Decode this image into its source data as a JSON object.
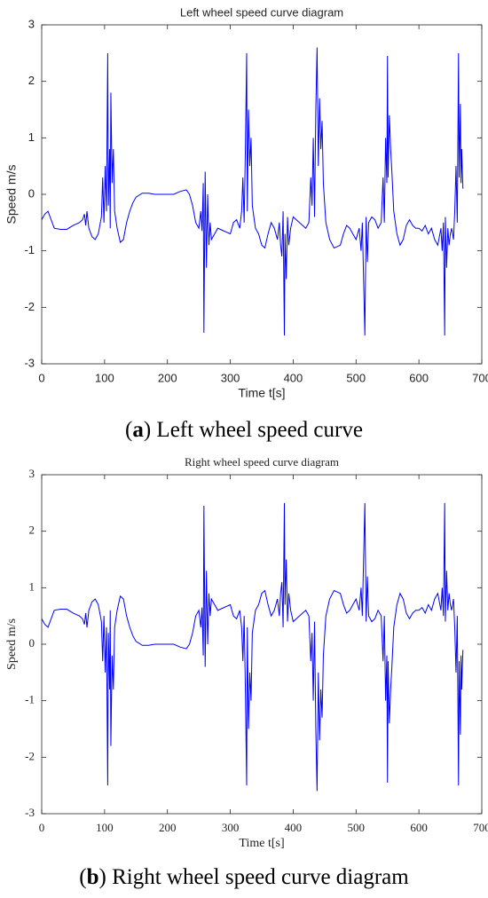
{
  "chart_data": [
    {
      "type": "line",
      "title": "Left wheel speed curve diagram",
      "xlabel": "Time t[s]",
      "ylabel": "Speed m/s",
      "caption": [
        {
          "text": "(",
          "bold": false
        },
        {
          "text": "a",
          "bold": true
        },
        {
          "text": ") Left wheel speed curve",
          "bold": false
        }
      ],
      "xlim": [
        0,
        700
      ],
      "xticks": [
        0,
        100,
        200,
        300,
        400,
        500,
        600,
        700
      ],
      "ylim": [
        -3,
        3
      ],
      "yticks": [
        -3,
        -2,
        -1,
        0,
        1,
        2,
        3
      ],
      "x": [
        0,
        5,
        10,
        15,
        20,
        30,
        40,
        50,
        60,
        65,
        68,
        70,
        72,
        75,
        80,
        85,
        90,
        95,
        97,
        99,
        101,
        103,
        105,
        106,
        108,
        109,
        110,
        112,
        114,
        116,
        120,
        125,
        130,
        135,
        140,
        145,
        150,
        160,
        170,
        180,
        190,
        200,
        210,
        220,
        230,
        235,
        240,
        245,
        250,
        253,
        255,
        257,
        258,
        260,
        262,
        264,
        266,
        268,
        270,
        275,
        280,
        290,
        300,
        305,
        310,
        315,
        318,
        320,
        322,
        324,
        326,
        327,
        329,
        331,
        333,
        335,
        340,
        345,
        350,
        355,
        360,
        365,
        370,
        375,
        378,
        380,
        382,
        384,
        386,
        387,
        389,
        391,
        393,
        396,
        400,
        410,
        420,
        425,
        428,
        430,
        432,
        434,
        436,
        438,
        440,
        442,
        444,
        446,
        448,
        452,
        458,
        465,
        475,
        480,
        485,
        490,
        495,
        500,
        505,
        508,
        510,
        512,
        514,
        516,
        518,
        520,
        525,
        530,
        535,
        540,
        543,
        545,
        547,
        549,
        550,
        551,
        553,
        555,
        557,
        560,
        565,
        570,
        575,
        580,
        585,
        590,
        595,
        600,
        605,
        610,
        615,
        620,
        625,
        630,
        635,
        637,
        639,
        641,
        642,
        644,
        646,
        648,
        650,
        652,
        655,
        657,
        659,
        661,
        663,
        664,
        666,
        667,
        668,
        670
      ],
      "series": [
        {
          "color": "#0000ff",
          "values": [
            -0.45,
            -0.35,
            -0.3,
            -0.45,
            -0.6,
            -0.62,
            -0.62,
            -0.55,
            -0.5,
            -0.45,
            -0.35,
            -0.55,
            -0.3,
            -0.6,
            -0.75,
            -0.8,
            -0.7,
            -0.4,
            0.3,
            -0.5,
            0.5,
            -0.3,
            2.5,
            -0.2,
            0.8,
            -0.6,
            1.8,
            0.2,
            0.8,
            -0.3,
            -0.6,
            -0.85,
            -0.8,
            -0.5,
            -0.3,
            -0.15,
            -0.05,
            0.02,
            0.02,
            0,
            0,
            0,
            0,
            0.05,
            0.08,
            0,
            -0.2,
            -0.5,
            -0.6,
            -0.3,
            -0.65,
            0.2,
            -2.45,
            0.4,
            -1.3,
            0,
            -0.9,
            -0.5,
            -0.8,
            -0.7,
            -0.6,
            -0.65,
            -0.7,
            -0.5,
            -0.45,
            -0.6,
            -0.3,
            0.3,
            -0.5,
            0.8,
            2.5,
            -0.3,
            1.5,
            0.5,
            1,
            -0.2,
            -0.6,
            -0.7,
            -0.9,
            -0.95,
            -0.7,
            -0.5,
            -0.6,
            -0.8,
            -0.5,
            -0.9,
            -1.1,
            -0.3,
            -2.5,
            -0.7,
            -1.5,
            -0.4,
            -0.9,
            -0.6,
            -0.4,
            -0.5,
            -0.6,
            -0.5,
            0.3,
            -0.2,
            1,
            -0.4,
            1.5,
            2.6,
            0.5,
            1.7,
            0.8,
            1.3,
            0.2,
            -0.5,
            -0.8,
            -0.95,
            -0.9,
            -0.7,
            -0.55,
            -0.6,
            -0.7,
            -0.8,
            -0.6,
            -1,
            -0.5,
            -1.5,
            -2.5,
            -0.4,
            -1.2,
            -0.5,
            -0.4,
            -0.45,
            -0.6,
            -0.5,
            0.3,
            -0.5,
            1,
            0.2,
            2.45,
            0.3,
            1.4,
            0.8,
            0.4,
            -0.3,
            -0.7,
            -0.9,
            -0.8,
            -0.55,
            -0.45,
            -0.55,
            -0.6,
            -0.6,
            -0.65,
            -0.55,
            -0.7,
            -0.6,
            -0.8,
            -0.9,
            -0.6,
            -1,
            -0.5,
            -2.5,
            -0.4,
            -1.3,
            -0.6,
            -0.9,
            -0.7,
            -0.6,
            -0.8,
            -0.3,
            0.5,
            -0.5,
            2.5,
            0.3,
            1.6,
            0.2,
            0.8,
            0.1
          ]
        }
      ]
    },
    {
      "type": "line",
      "title": "Right wheel speed curve diagram",
      "xlabel": "Time t[s]",
      "ylabel": "Speed m/s",
      "caption": [
        {
          "text": "(",
          "bold": false
        },
        {
          "text": "b",
          "bold": true
        },
        {
          "text": ") Right wheel speed curve diagram",
          "bold": false
        }
      ],
      "xlim": [
        0,
        700
      ],
      "xticks": [
        0,
        100,
        200,
        300,
        400,
        500,
        600,
        700
      ],
      "ylim": [
        -3,
        3
      ],
      "yticks": [
        -3,
        -2,
        -1,
        0,
        1,
        2,
        3
      ],
      "x": [
        0,
        5,
        10,
        15,
        20,
        30,
        40,
        50,
        60,
        65,
        68,
        70,
        72,
        75,
        80,
        85,
        90,
        95,
        97,
        99,
        101,
        103,
        105,
        106,
        108,
        109,
        110,
        112,
        114,
        116,
        120,
        125,
        130,
        135,
        140,
        145,
        150,
        160,
        170,
        180,
        190,
        200,
        210,
        220,
        230,
        235,
        240,
        245,
        250,
        253,
        255,
        257,
        258,
        260,
        262,
        264,
        266,
        268,
        270,
        275,
        280,
        290,
        300,
        305,
        310,
        315,
        318,
        320,
        322,
        324,
        326,
        327,
        329,
        331,
        333,
        335,
        340,
        345,
        350,
        355,
        360,
        365,
        370,
        375,
        378,
        380,
        382,
        384,
        386,
        387,
        389,
        391,
        393,
        396,
        400,
        410,
        420,
        425,
        428,
        430,
        432,
        434,
        436,
        438,
        440,
        442,
        444,
        446,
        448,
        452,
        458,
        465,
        475,
        480,
        485,
        490,
        495,
        500,
        505,
        508,
        510,
        512,
        514,
        516,
        518,
        520,
        525,
        530,
        535,
        540,
        543,
        545,
        547,
        549,
        550,
        551,
        553,
        555,
        557,
        560,
        565,
        570,
        575,
        580,
        585,
        590,
        595,
        600,
        605,
        610,
        615,
        620,
        625,
        630,
        635,
        637,
        639,
        641,
        642,
        644,
        646,
        648,
        650,
        652,
        655,
        657,
        659,
        661,
        663,
        664,
        666,
        667,
        668,
        670
      ],
      "series": [
        {
          "color": "#0000ff",
          "values": [
            0.45,
            0.35,
            0.3,
            0.45,
            0.6,
            0.62,
            0.62,
            0.55,
            0.5,
            0.45,
            0.35,
            0.55,
            0.3,
            0.6,
            0.75,
            0.8,
            0.7,
            0.4,
            -0.3,
            0.5,
            -0.5,
            0.3,
            -2.5,
            0.2,
            -0.8,
            0.6,
            -1.8,
            -0.2,
            -0.8,
            0.3,
            0.6,
            0.85,
            0.8,
            0.5,
            0.3,
            0.15,
            0.05,
            -0.02,
            -0.02,
            0,
            0,
            0,
            0,
            -0.05,
            -0.08,
            0,
            0.2,
            0.5,
            0.6,
            0.3,
            0.65,
            -0.2,
            2.45,
            -0.4,
            1.3,
            0,
            0.9,
            0.5,
            0.8,
            0.7,
            0.6,
            0.65,
            0.7,
            0.5,
            0.45,
            0.6,
            0.3,
            -0.3,
            0.5,
            -0.8,
            -2.5,
            0.3,
            -1.5,
            -0.5,
            -1,
            0.2,
            0.6,
            0.7,
            0.9,
            0.95,
            0.7,
            0.5,
            0.6,
            0.8,
            0.5,
            0.9,
            1.1,
            0.3,
            2.5,
            0.7,
            1.5,
            0.4,
            0.9,
            0.6,
            0.4,
            0.5,
            0.6,
            0.5,
            -0.3,
            0.2,
            -1,
            0.4,
            -1.5,
            -2.6,
            -0.5,
            -1.7,
            -0.8,
            -1.3,
            -0.2,
            0.5,
            0.8,
            0.95,
            0.9,
            0.7,
            0.55,
            0.6,
            0.7,
            0.8,
            0.6,
            1,
            0.5,
            1.5,
            2.5,
            0.4,
            1.2,
            0.5,
            0.4,
            0.45,
            0.6,
            0.5,
            -0.3,
            0.5,
            -1,
            -0.2,
            -2.45,
            -0.3,
            -1.4,
            -0.8,
            -0.4,
            0.3,
            0.7,
            0.9,
            0.8,
            0.55,
            0.45,
            0.55,
            0.6,
            0.6,
            0.65,
            0.55,
            0.7,
            0.6,
            0.8,
            0.9,
            0.6,
            1,
            0.5,
            2.5,
            0.4,
            1.3,
            0.6,
            0.9,
            0.7,
            0.6,
            0.8,
            0.3,
            -0.5,
            0.5,
            -2.5,
            -0.3,
            -1.6,
            -0.2,
            -0.8,
            -0.1
          ]
        }
      ]
    }
  ]
}
